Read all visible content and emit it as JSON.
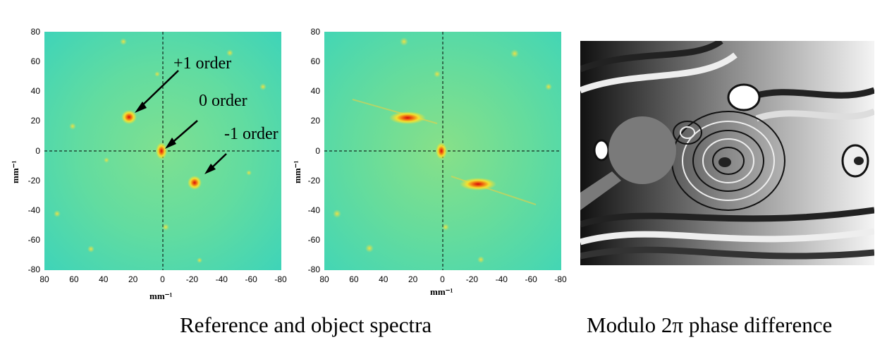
{
  "figure": {
    "captions": {
      "left": "Reference and object spectra",
      "right": "Modulo 2π phase difference"
    }
  },
  "spectrum_plots": [
    {
      "y_ticks": [
        "80",
        "60",
        "40",
        "20",
        "0",
        "-20",
        "-40",
        "-60",
        "-80"
      ],
      "x_ticks": [
        "80",
        "60",
        "40",
        "20",
        "0",
        "-20",
        "-40",
        "-60",
        "-80"
      ],
      "xlabel": "mm⁻¹",
      "ylabel": "mm⁻¹",
      "annotations": [
        "+1 order",
        "0 order",
        "-1 order"
      ]
    },
    {
      "y_ticks": [
        "80",
        "60",
        "40",
        "20",
        "0",
        "-20",
        "-40",
        "-60",
        "-80"
      ],
      "x_ticks": [
        "80",
        "60",
        "40",
        "20",
        "0",
        "-20",
        "-40",
        "-60",
        "-80"
      ],
      "xlabel": "mm⁻¹",
      "ylabel": "mm⁻¹"
    }
  ],
  "colors": {
    "spectrum_background": "#5fdc9a",
    "peak": "#e01818",
    "peak_halo": "#f5e020"
  }
}
